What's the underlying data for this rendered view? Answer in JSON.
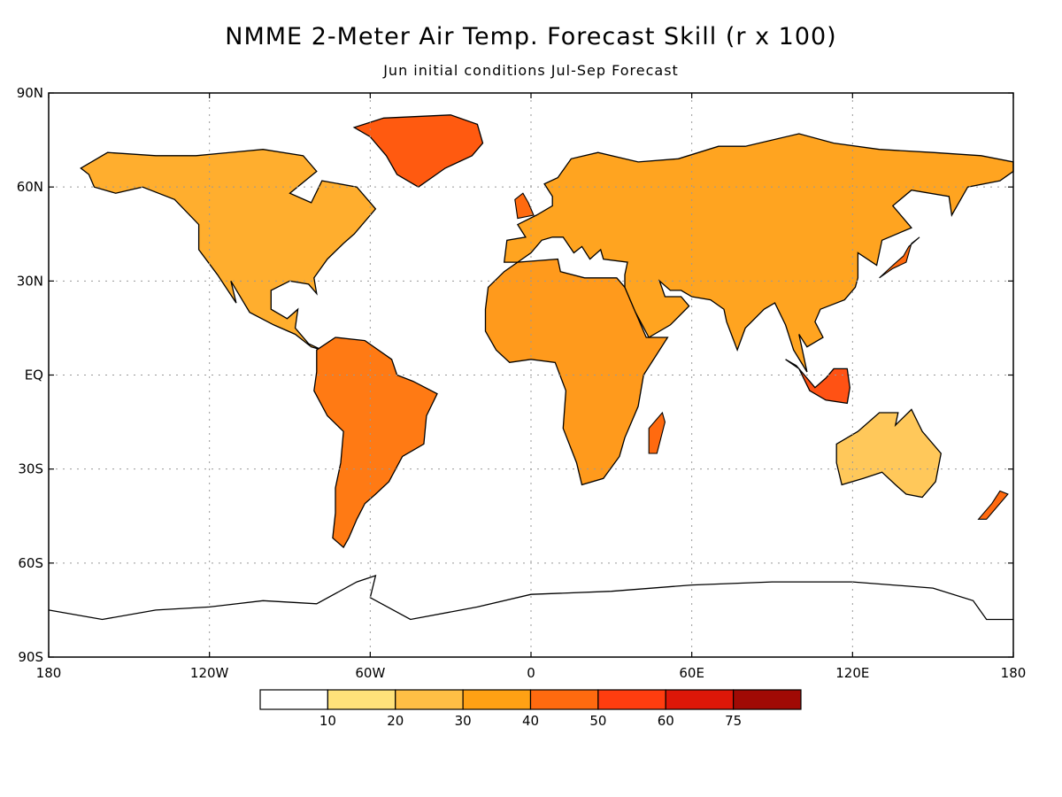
{
  "title": "NMME 2-Meter Air Temp. Forecast Skill (r x 100)",
  "subtitle": "Jun initial conditions   Jul-Sep Forecast",
  "map": {
    "projection": "equirectangular",
    "lon_range": [
      -180,
      180
    ],
    "lat_range": [
      -90,
      90
    ],
    "grid": true,
    "lat_ticks": [
      {
        "value": 90,
        "label": "90N"
      },
      {
        "value": 60,
        "label": "60N"
      },
      {
        "value": 30,
        "label": "30N"
      },
      {
        "value": 0,
        "label": "EQ"
      },
      {
        "value": -30,
        "label": "30S"
      },
      {
        "value": -60,
        "label": "60S"
      },
      {
        "value": -90,
        "label": "90S"
      }
    ],
    "lon_ticks": [
      {
        "value": -180,
        "label": "180"
      },
      {
        "value": -120,
        "label": "120W"
      },
      {
        "value": -60,
        "label": "60W"
      },
      {
        "value": 0,
        "label": "0"
      },
      {
        "value": 60,
        "label": "60E"
      },
      {
        "value": 120,
        "label": "120E"
      },
      {
        "value": 180,
        "label": "180"
      }
    ]
  },
  "colorbar": {
    "colors": [
      "#ffffff",
      "#ffe27a",
      "#ffbf45",
      "#ffa114",
      "#ff6a0f",
      "#ff3d0f",
      "#dd1708",
      "#a00a05"
    ],
    "boundaries": [
      "10",
      "20",
      "30",
      "40",
      "50",
      "60",
      "75"
    ]
  },
  "regions": [
    {
      "name": "greenland",
      "color": "#ff5a10"
    },
    {
      "name": "north-america",
      "color": "#ffae2e"
    },
    {
      "name": "south-america",
      "color": "#ff7a14"
    },
    {
      "name": "africa",
      "color": "#ff9a1c"
    },
    {
      "name": "eurasia",
      "color": "#ffa420"
    },
    {
      "name": "australia",
      "color": "#ffc85a"
    },
    {
      "name": "maritime-continent",
      "color": "#ff5214"
    }
  ]
}
